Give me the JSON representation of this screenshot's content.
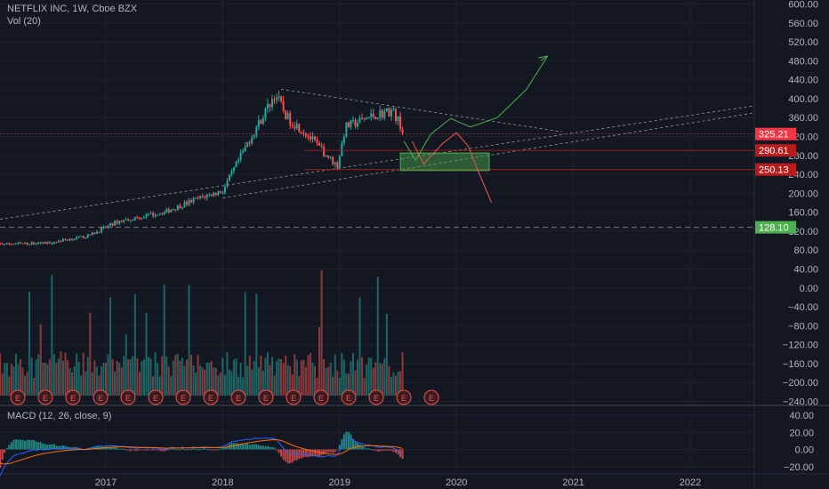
{
  "header": {
    "symbol": "NETFLIX INC, 1W, Cboe BZX",
    "volume_indicator": "Vol (20)",
    "macd_indicator": "MACD (12, 26, close, 9)"
  },
  "colors": {
    "background": "#131722",
    "up": "#26a69a",
    "down": "#ef5350",
    "axis_text": "#b2b5be",
    "grid": "#1e222d",
    "macd_line": "#2962ff",
    "signal_line": "#ff6d00"
  },
  "chart_data": [
    {
      "type": "candlestick",
      "title": "NETFLIX INC, 1W, Cboe BZX",
      "x_ticks": [
        "2017",
        "2018",
        "2019",
        "2020",
        "2021",
        "2022"
      ],
      "y_ticks": [
        600,
        560,
        520,
        480,
        440,
        400,
        360,
        320,
        280,
        240,
        200,
        160,
        120,
        80,
        40,
        0,
        -40,
        -80,
        -120,
        -160,
        -200,
        -240
      ],
      "ylim": [
        -240,
        600
      ],
      "price_labels": [
        {
          "value": "325.21",
          "color": "#f23645"
        },
        {
          "value": "290.61",
          "color": "#b71c1c"
        },
        {
          "value": "250.13",
          "color": "#b71c1c"
        },
        {
          "value": "128.10",
          "color": "#4caf50"
        }
      ],
      "earnings_markers": [
        "E",
        "E",
        "E",
        "E",
        "E",
        "E",
        "E",
        "E",
        "E",
        "E",
        "E",
        "E",
        "E",
        "E",
        "E",
        "E"
      ],
      "drawings": [
        "descending trendline from 2018 high",
        "ascending support trendlines",
        "green demand box",
        "projected green path upward",
        "projected red path downward"
      ]
    },
    {
      "type": "histogram",
      "title": "MACD (12, 26, close, 9)",
      "y_ticks": [
        40,
        20,
        0,
        -20
      ],
      "ylim": [
        -28,
        46
      ]
    }
  ]
}
